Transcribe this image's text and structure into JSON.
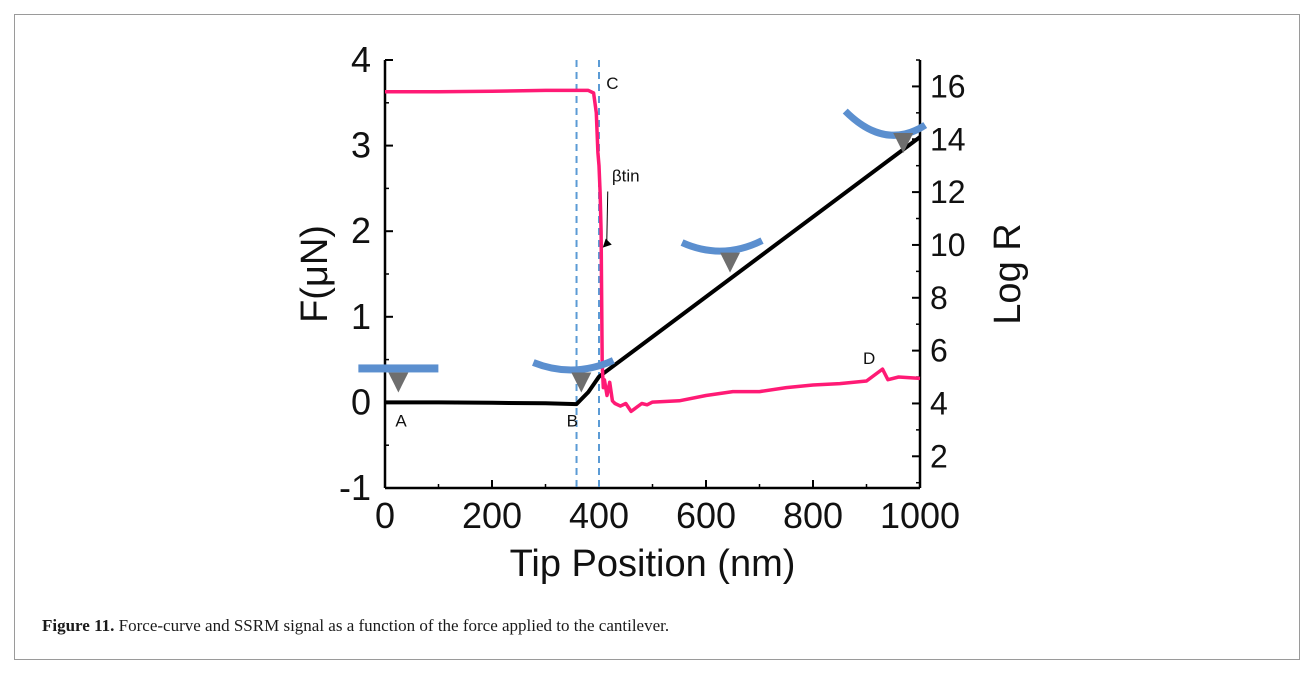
{
  "figure": {
    "caption_label": "Figure 11.",
    "caption_text": " Force-curve and SSRM signal as a function of the force applied to the cantilever."
  },
  "chart_data": {
    "type": "line",
    "xlabel": "Tip Position (nm)",
    "ylabel_left": "F(μN)",
    "ylabel_right": "Log R",
    "xlim": [
      0,
      1000
    ],
    "ylim_left": [
      -1,
      4
    ],
    "ylim_right": [
      0.8,
      17
    ],
    "xticks": [
      0,
      200,
      400,
      600,
      800,
      1000
    ],
    "yticks_left": [
      -1,
      0,
      1,
      2,
      3,
      4
    ],
    "yticks_right": [
      2,
      4,
      6,
      8,
      10,
      12,
      14,
      16
    ],
    "grid": false,
    "series": [
      {
        "axis": "left",
        "color": "#000000",
        "x": [
          0,
          100,
          200,
          300,
          358,
          380,
          400,
          1000
        ],
        "y": [
          0.0,
          0.0,
          -0.005,
          -0.01,
          -0.02,
          0.12,
          0.3,
          3.1
        ]
      },
      {
        "axis": "right",
        "color": "#ff1a75",
        "x": [
          0,
          100,
          200,
          300,
          380,
          390,
          395,
          398,
          400,
          402,
          404,
          406,
          408,
          410,
          415,
          420,
          425,
          430,
          440,
          450,
          460,
          470,
          480,
          490,
          500,
          550,
          600,
          650,
          700,
          750,
          800,
          850,
          900,
          930,
          940,
          960,
          1000
        ],
        "y": [
          15.8,
          15.8,
          15.82,
          15.85,
          15.85,
          15.75,
          15.0,
          13.5,
          13.0,
          12.0,
          10.5,
          5.5,
          4.6,
          4.9,
          4.3,
          4.8,
          4.1,
          4.0,
          3.9,
          4.0,
          3.7,
          3.85,
          4.0,
          3.95,
          4.05,
          4.1,
          4.3,
          4.45,
          4.45,
          4.6,
          4.7,
          4.75,
          4.85,
          5.3,
          4.9,
          5.0,
          4.95
        ]
      }
    ],
    "vlines_x": [
      358,
      400
    ],
    "vline_color": "#5b9bd5",
    "point_labels": [
      {
        "text": "A",
        "x": 30,
        "y": -0.28,
        "axis": "left"
      },
      {
        "text": "B",
        "x": 350,
        "y": -0.28,
        "axis": "left"
      },
      {
        "text": "C",
        "x": 425,
        "y": 15.9,
        "axis": "right"
      },
      {
        "text": "D",
        "x": 905,
        "y": 5.5,
        "axis": "right"
      }
    ],
    "annotation": {
      "text": "βtin",
      "x": 450,
      "y": 12.4,
      "arrow_to_x": 407,
      "arrow_to_y": 9.9,
      "axis": "right"
    },
    "cantilever_icons": [
      {
        "stage": "A",
        "x": 25,
        "y": 0.35,
        "axis": "left",
        "bend": "flat"
      },
      {
        "stage": "B",
        "x": 352,
        "y": 0.35,
        "axis": "left",
        "bend": "slight"
      },
      {
        "stage": "mid",
        "x": 630,
        "y": 1.75,
        "axis": "left",
        "bend": "medium"
      },
      {
        "stage": "end",
        "x": 935,
        "y": 3.1,
        "axis": "left",
        "bend": "strong"
      }
    ],
    "cantilever_color": "#5b8fcf",
    "tip_color": "#6e6e6e"
  }
}
